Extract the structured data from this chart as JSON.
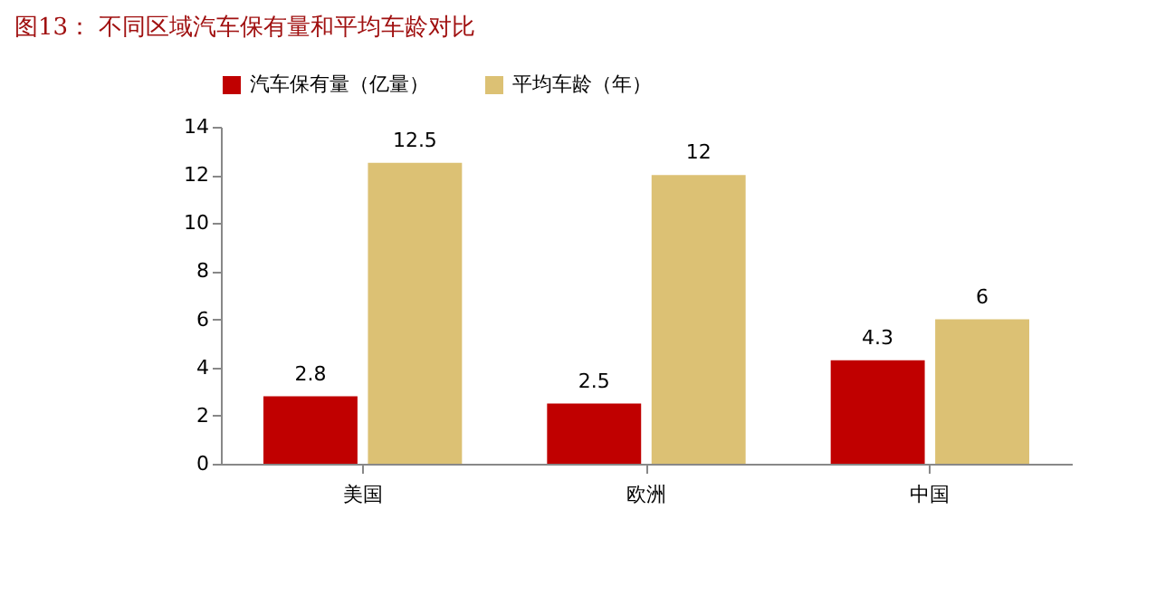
{
  "chart_data": {
    "type": "bar",
    "title": "图13：  不同区域汽车保有量和平均车龄对比",
    "categories": [
      "美国",
      "欧洲",
      "中国"
    ],
    "series": [
      {
        "name": "汽车保有量（亿量）",
        "color": "#c00000",
        "values": [
          2.8,
          2.5,
          4.3
        ]
      },
      {
        "name": "平均车龄（年）",
        "color": "#dcc174",
        "values": [
          12.5,
          12,
          6
        ]
      }
    ],
    "ylim": [
      0,
      14
    ],
    "yticks": [
      0,
      2,
      4,
      6,
      8,
      10,
      12,
      14
    ],
    "data_labels": true,
    "legend": "top",
    "grid": false
  }
}
